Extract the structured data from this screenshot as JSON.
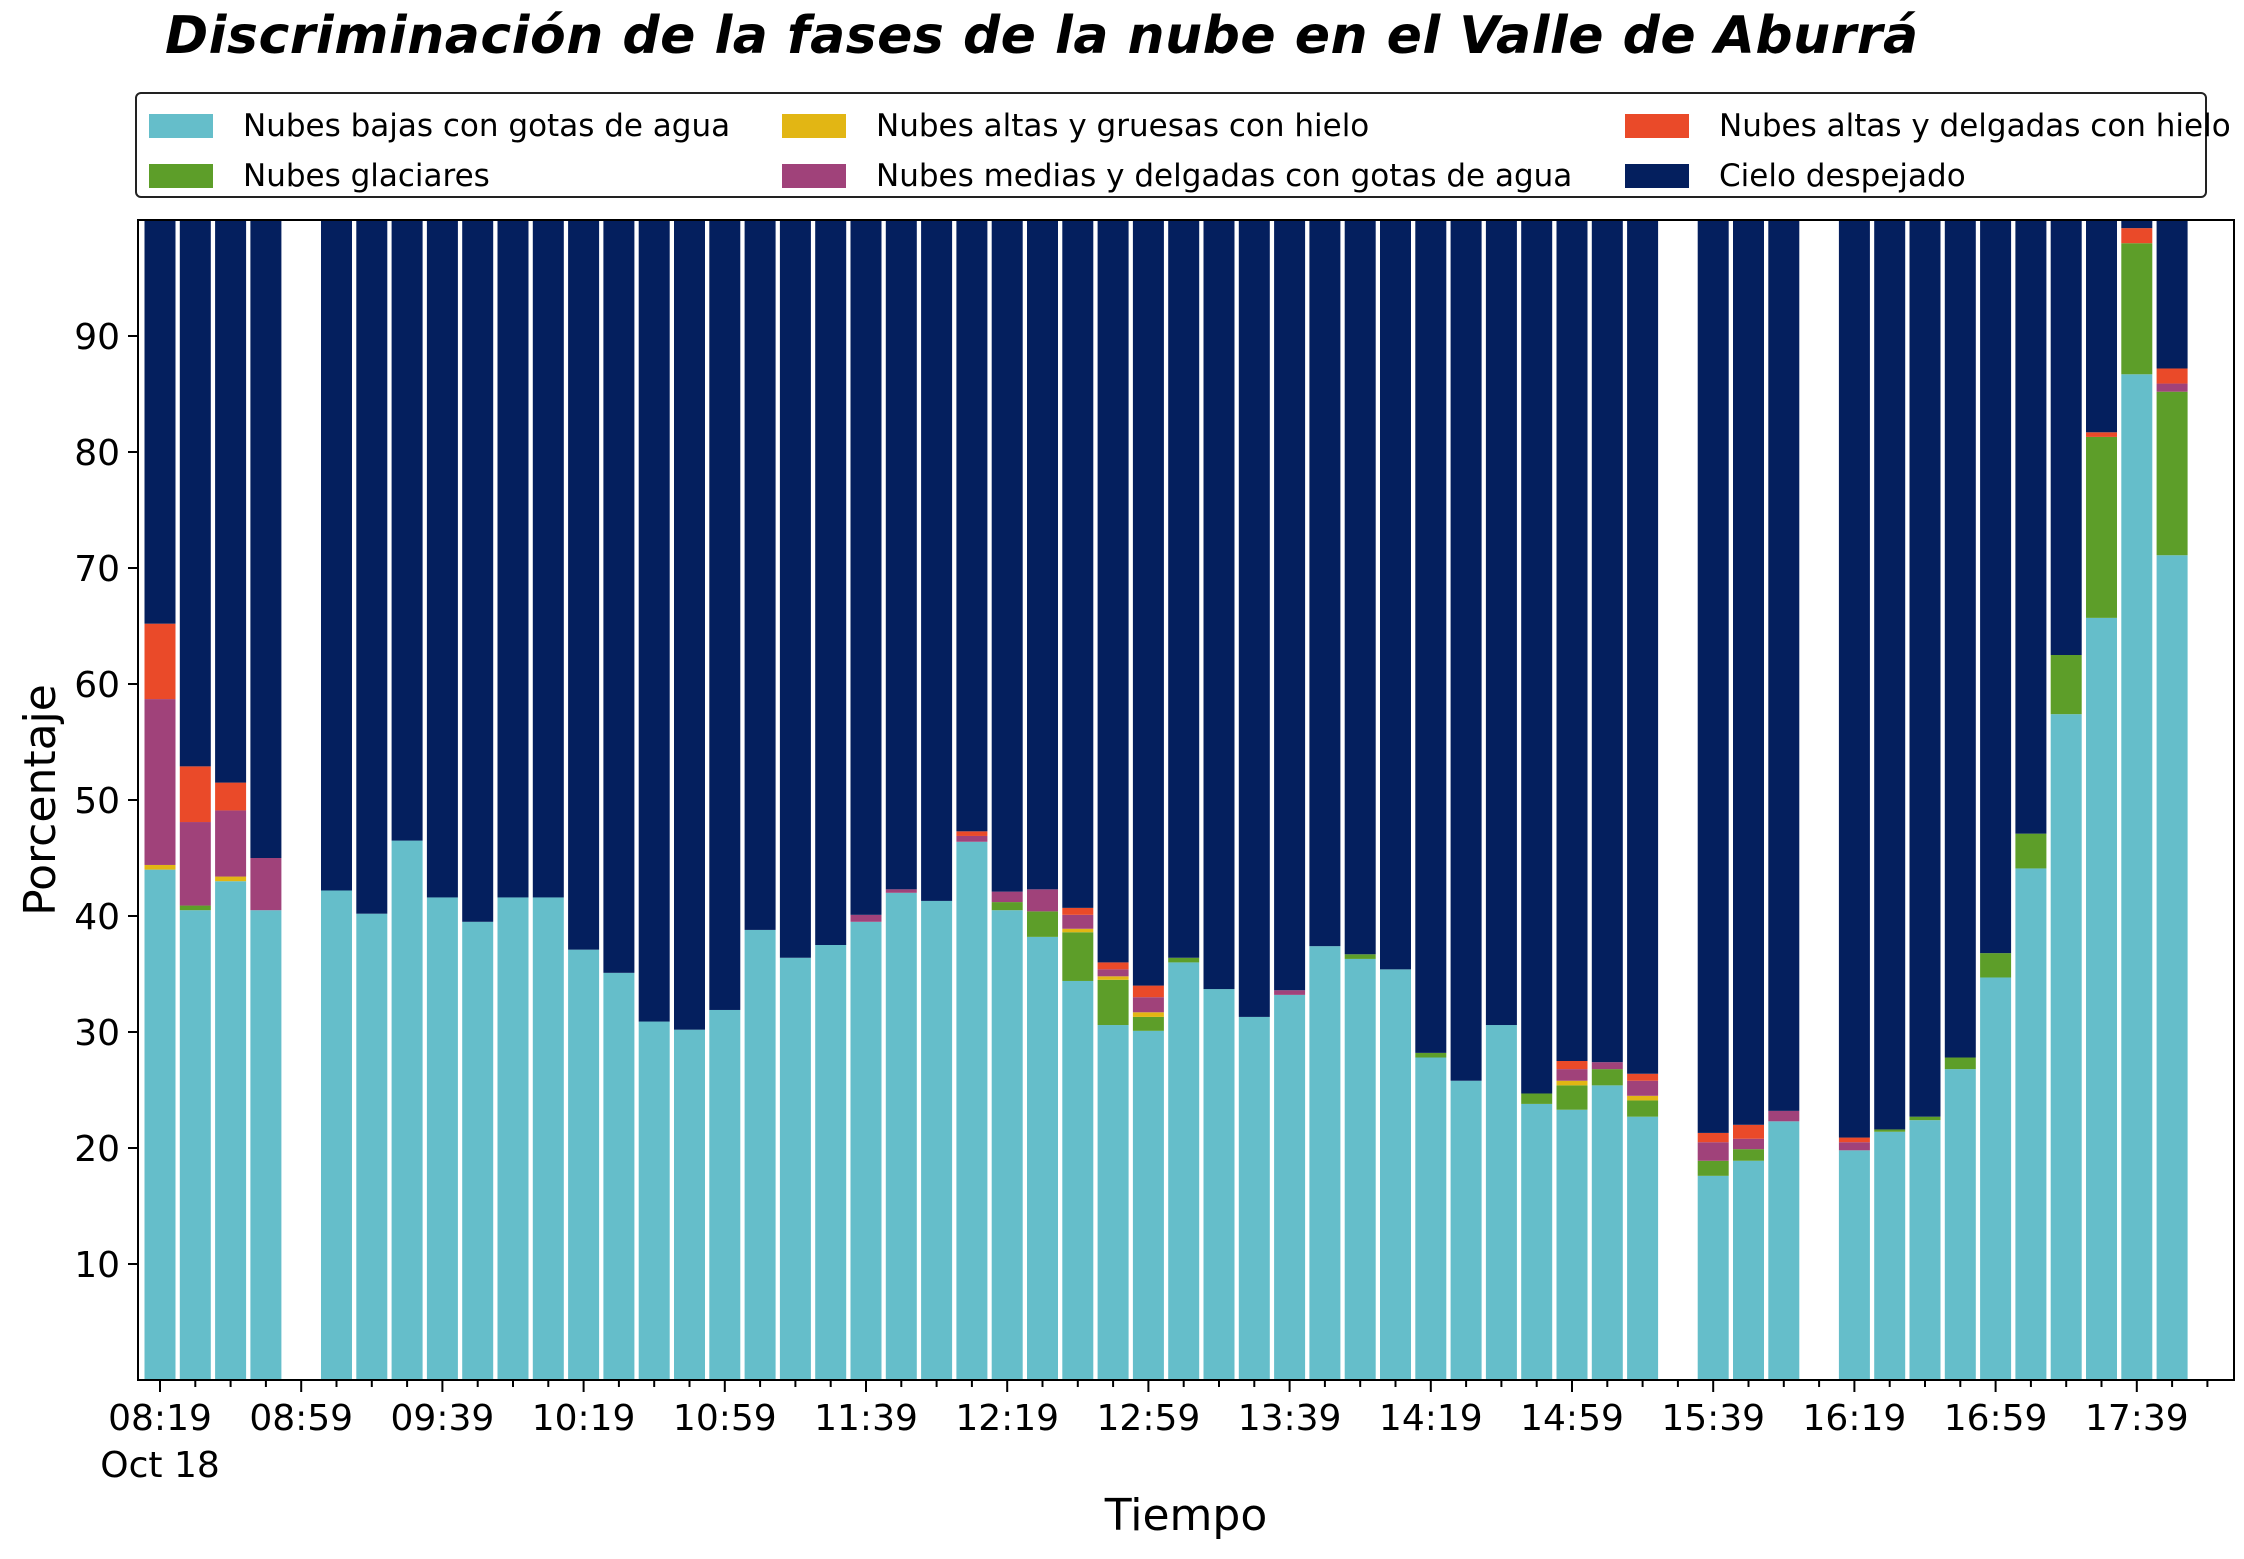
{
  "colors": {
    "bajas": "#65BECA",
    "glaciares": "#5D9E29",
    "altas_gruesas": "#E2B614",
    "medias": "#A0427A",
    "altas_delgadas": "#EA4A29",
    "despejado": "#041F5E"
  },
  "chart_data": {
    "type": "bar",
    "stacked": true,
    "title": "Discriminación de la fases de la nube en el Valle de Aburrá",
    "xlabel": "Tiempo",
    "ylabel": "Porcentaje",
    "ylim": [
      0,
      100
    ],
    "yticks": [
      10,
      20,
      30,
      40,
      50,
      60,
      70,
      80,
      90
    ],
    "x_unit_minutes": 10,
    "x_start": "08:19",
    "x_date_label": "Oct 18",
    "xtick_labels": [
      "08:19",
      "08:59",
      "09:39",
      "10:19",
      "10:59",
      "11:39",
      "12:19",
      "12:59",
      "13:39",
      "14:19",
      "14:59",
      "15:39",
      "16:19",
      "16:59",
      "17:39"
    ],
    "legend_placement": "top",
    "series": [
      {
        "name": "Nubes bajas con gotas de agua",
        "color_key": "bajas",
        "values": [
          44,
          40.5,
          43,
          40.5,
          null,
          42.2,
          40.2,
          46.5,
          41.6,
          39.5,
          41.6,
          41.6,
          37.1,
          35.1,
          30.9,
          30.2,
          31.9,
          38.8,
          36.4,
          37.5,
          39.5,
          42,
          41.3,
          46.4,
          40.5,
          38.2,
          34.4,
          30.6,
          30.1,
          36,
          33.7,
          31.3,
          33.2,
          37.4,
          36.3,
          35.4,
          27.8,
          25.8,
          30.6,
          23.8,
          23.3,
          25.4,
          22.7,
          null,
          17.6,
          18.9,
          22.3,
          null,
          19.8,
          21.4,
          22.4,
          26.8,
          34.7,
          44.1,
          57.4,
          65.7,
          86.7,
          71.1
        ]
      },
      {
        "name": "Nubes glaciares",
        "color_key": "glaciares",
        "values": [
          0,
          0.4,
          0,
          0,
          null,
          0,
          0,
          0,
          0,
          0,
          0,
          0,
          0,
          0,
          0,
          0,
          0,
          0,
          0,
          0,
          0,
          0,
          0,
          0,
          0.7,
          2.2,
          4.2,
          3.9,
          1.2,
          0.4,
          0,
          0,
          0,
          0,
          0.4,
          0,
          0.4,
          0,
          0,
          0.9,
          2.1,
          1.4,
          1.4,
          null,
          1.3,
          1,
          0,
          null,
          0,
          0.2,
          0.3,
          1,
          2.1,
          3,
          5.1,
          15.6,
          11.3,
          14.1
        ]
      },
      {
        "name": "Nubes altas y gruesas con hielo",
        "color_key": "altas_gruesas",
        "values": [
          0.4,
          0,
          0.4,
          0,
          null,
          0,
          0,
          0,
          0,
          0,
          0,
          0,
          0,
          0,
          0,
          0,
          0,
          0,
          0,
          0,
          0,
          0,
          0,
          0,
          0,
          0,
          0.3,
          0.3,
          0.4,
          0,
          0,
          0,
          0,
          0,
          0,
          0,
          0,
          0,
          0,
          0,
          0.4,
          0,
          0.4,
          null,
          0,
          0,
          0,
          null,
          0,
          0,
          0,
          0,
          0,
          0,
          0,
          0,
          0,
          0
        ]
      },
      {
        "name": "Nubes medias y delgadas con gotas de agua",
        "color_key": "medias",
        "values": [
          14.3,
          7.2,
          5.7,
          4.5,
          null,
          0,
          0,
          0,
          0,
          0,
          0,
          0,
          0,
          0,
          0,
          0,
          0,
          0,
          0,
          0,
          0.6,
          0.3,
          0,
          0.5,
          0.9,
          1.9,
          1.2,
          0.6,
          1.3,
          0,
          0,
          0,
          0.4,
          0,
          0,
          0,
          0,
          0,
          0,
          0,
          1,
          0.6,
          1.3,
          null,
          1.6,
          0.9,
          0.9,
          null,
          0.7,
          0,
          0,
          0,
          0,
          0,
          0,
          0,
          0,
          0.7
        ]
      },
      {
        "name": "Nubes altas y delgadas con hielo",
        "color_key": "altas_delgadas",
        "values": [
          6.5,
          4.8,
          2.4,
          0,
          null,
          0,
          0,
          0,
          0,
          0,
          0,
          0,
          0,
          0,
          0,
          0,
          0,
          0,
          0,
          0,
          0,
          0,
          0,
          0.4,
          0,
          0,
          0.6,
          0.6,
          1,
          0,
          0,
          0,
          0,
          0,
          0,
          0,
          0,
          0,
          0,
          0,
          0.7,
          0,
          0.6,
          null,
          0.8,
          1.2,
          0,
          null,
          0.4,
          0,
          0,
          0,
          0,
          0,
          0,
          0.4,
          1.3,
          1.3
        ]
      },
      {
        "name": "Cielo despejado",
        "color_key": "despejado",
        "values": [
          34.8,
          47.1,
          48.5,
          55,
          null,
          57.8,
          59.8,
          53.5,
          58.4,
          60.5,
          58.4,
          58.4,
          62.9,
          64.9,
          69.1,
          69.8,
          68.1,
          61.2,
          63.6,
          62.5,
          59.9,
          57.7,
          58.7,
          52.7,
          57.9,
          57.7,
          59.3,
          64.6,
          66,
          63.6,
          66.3,
          68.7,
          66.4,
          62.6,
          63.3,
          64.6,
          71.8,
          74.2,
          69.4,
          75.3,
          72.5,
          72.6,
          73.6,
          null,
          78.7,
          78,
          76.8,
          null,
          79.1,
          78.4,
          77.3,
          72.2,
          63.2,
          52.9,
          37.5,
          18.3,
          0.7,
          12.8
        ]
      }
    ]
  }
}
